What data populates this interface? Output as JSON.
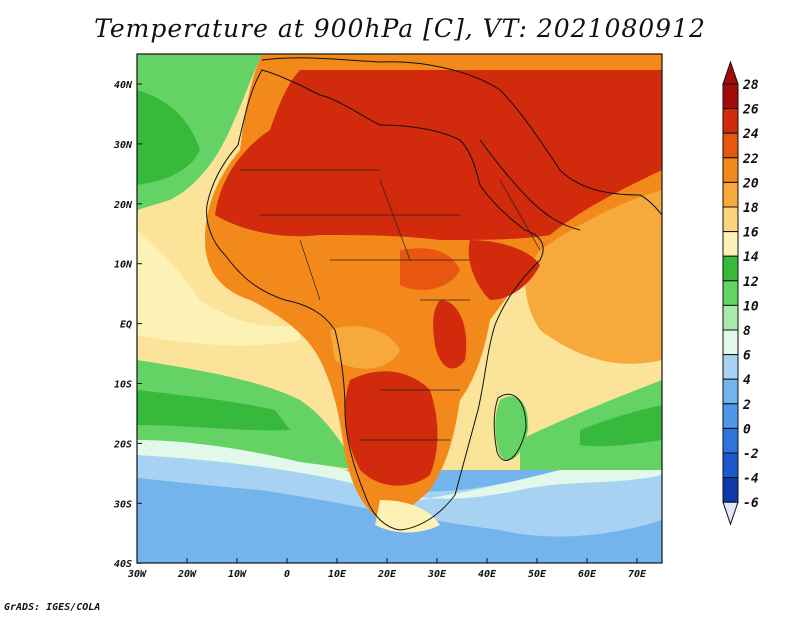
{
  "title": "Temperature at 900hPa [C], VT: 2021080912",
  "credit": "GrADS: IGES/COLA",
  "map": {
    "lat_labels": [
      "40N",
      "30N",
      "20N",
      "10N",
      "EQ",
      "10S",
      "20S",
      "30S",
      "40S"
    ],
    "lon_labels": [
      "30W",
      "20W",
      "10W",
      "0",
      "10E",
      "20E",
      "30E",
      "40E",
      "50E",
      "60E",
      "70E"
    ]
  },
  "colorbar": {
    "labels": [
      "28",
      "26",
      "24",
      "22",
      "20",
      "18",
      "16",
      "14",
      "12",
      "10",
      "8",
      "6",
      "4",
      "2",
      "0",
      "-2",
      "-4",
      "-6"
    ],
    "colors": [
      "#a50a0a",
      "#d22a0c",
      "#e8560f",
      "#f3891a",
      "#f8a93b",
      "#fbd57a",
      "#fdf2b5",
      "#37b93c",
      "#64d264",
      "#a6eba8",
      "#e2f8ea",
      "#a7d2f2",
      "#74b4ec",
      "#4c98e6",
      "#2f74dd",
      "#1d58cc",
      "#0d3aa8",
      "#071a70"
    ]
  }
}
